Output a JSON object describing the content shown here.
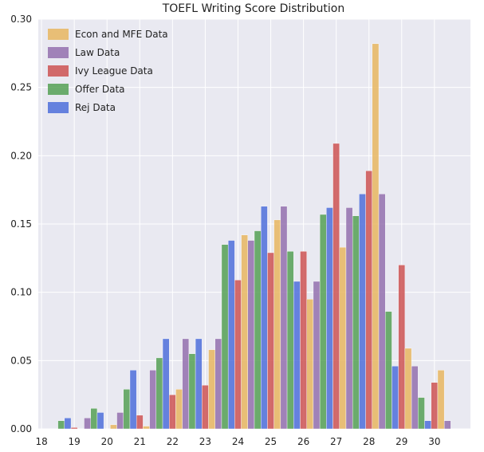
{
  "chart_data": {
    "type": "bar",
    "title": "TOEFL Writing Score Distribution",
    "xlabel": "",
    "ylabel": "",
    "xlim": [
      17.9,
      31.1
    ],
    "ylim": [
      0,
      0.3
    ],
    "xticks": [
      "18",
      "19",
      "20",
      "21",
      "22",
      "23",
      "24",
      "25",
      "26",
      "27",
      "28",
      "29",
      "30"
    ],
    "yticks": [
      "0.00",
      "0.05",
      "0.10",
      "0.15",
      "0.20",
      "0.25",
      "0.30"
    ],
    "categories": [
      19,
      20,
      21,
      22,
      23,
      24,
      25,
      26,
      27,
      28,
      29,
      30
    ],
    "grid": true,
    "legend_position": "top-left",
    "series": [
      {
        "name": "Econ and MFE Data",
        "color": "#e8b660",
        "values": [
          0.0,
          0.003,
          0.002,
          0.029,
          0.058,
          0.142,
          0.153,
          0.095,
          0.133,
          0.282,
          0.059,
          0.043
        ]
      },
      {
        "name": "Law Data",
        "color": "#9370ae",
        "values": [
          0.008,
          0.012,
          0.043,
          0.066,
          0.066,
          0.138,
          0.163,
          0.108,
          0.162,
          0.172,
          0.046,
          0.006
        ]
      },
      {
        "name": "Ivy League Data",
        "color": "#cc5252",
        "values": [
          0.001,
          0.0,
          0.01,
          0.025,
          0.032,
          0.109,
          0.129,
          0.13,
          0.209,
          0.189,
          0.12,
          0.034
        ]
      },
      {
        "name": "Offer Data",
        "color": "#55a055",
        "values": [
          0.006,
          0.015,
          0.029,
          0.052,
          0.055,
          0.135,
          0.145,
          0.13,
          0.157,
          0.156,
          0.086,
          0.023
        ]
      },
      {
        "name": "Rej Data",
        "color": "#4e6edb",
        "values": [
          0.008,
          0.012,
          0.043,
          0.066,
          0.066,
          0.138,
          0.163,
          0.108,
          0.162,
          0.172,
          0.046,
          0.006
        ]
      }
    ]
  }
}
